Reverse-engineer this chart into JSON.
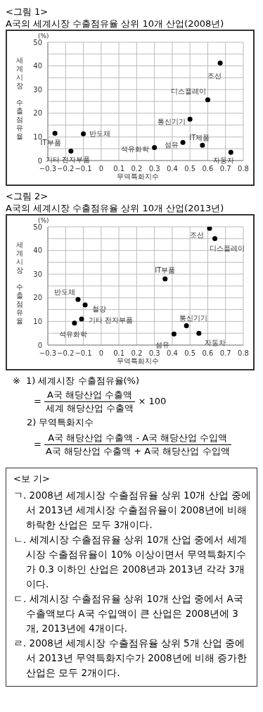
{
  "chart_data": [
    {
      "type": "scatter",
      "title": "<그림 1>",
      "subtitle": "A국의 세계시장 수출점유율 상위 10개 산업(2008년)",
      "xlabel": "무역특화지수",
      "ylabel": "세계시장 수출점유율",
      "marker": "circle",
      "grid": true,
      "x": [
        -0.26,
        -0.17,
        -0.1,
        0.3,
        0.46,
        0.5,
        0.57,
        0.6,
        0.67,
        0.73
      ],
      "series": [
        {
          "color": "#000000",
          "values": [
            11.5,
            4,
            11.3,
            5.5,
            7.7,
            17.5,
            6.5,
            25.7,
            41.2,
            3.5
          ]
        }
      ],
      "xlim": [
        -0.3,
        0.8
      ],
      "xticks": [
        {
          "value": -0.3,
          "label": "−0.3"
        },
        {
          "value": -0.2,
          "label": "−0.2"
        },
        {
          "value": -0.1,
          "label": "−0.1"
        },
        0,
        0.1,
        0.2,
        0.3,
        0.4,
        0.5,
        0.6,
        0.7,
        0.8
      ],
      "ylim": [
        0,
        50
      ],
      "yticks": [
        0,
        {
          "value": 5,
          "label": null
        },
        10,
        {
          "value": 15,
          "label": null
        },
        20,
        {
          "value": 25,
          "label": null
        },
        30,
        {
          "value": 35,
          "label": null
        },
        40,
        {
          "value": 45,
          "label": null
        },
        50
      ],
      "annotations": [
        "(%)",
        {
          "text": "IT부품",
          "x": -0.26,
          "y": 11.5
        },
        {
          "text": "기타 전자부품",
          "x": -0.17,
          "y": 4
        },
        {
          "text": "반도체",
          "x": -0.1,
          "y": 11.3
        },
        {
          "text": "석유화학",
          "x": 0.3,
          "y": 5.5
        },
        {
          "text": "섬유",
          "x": 0.46,
          "y": 7.7
        },
        {
          "text": "통신기기",
          "x": 0.5,
          "y": 17.5
        },
        {
          "text": "IT제품",
          "x": 0.57,
          "y": 6.5
        },
        {
          "text": "디스플레이",
          "x": 0.6,
          "y": 25.7
        },
        {
          "text": "조선",
          "x": 0.67,
          "y": 41.2
        },
        {
          "text": "자동차",
          "x": 0.73,
          "y": 3.5
        }
      ]
    },
    {
      "type": "scatter",
      "title": "<그림 2>",
      "subtitle": "A국의 세계시장 수출점유율 상위 10개 산업(2013년)",
      "xlabel": "무역특화지수",
      "ylabel": "세계시장 수출점유율",
      "marker": "circle",
      "grid": true,
      "x": [
        0.61,
        0.64,
        0.36,
        -0.13,
        -0.09,
        -0.11,
        -0.15,
        0.48,
        0.41,
        0.55
      ],
      "series": [
        {
          "color": "#000000",
          "values": [
            49.3,
            45,
            28,
            19.3,
            17,
            11,
            9.3,
            8.2,
            4.7,
            5
          ]
        }
      ],
      "xlim": [
        -0.3,
        0.8
      ],
      "xticks": [
        {
          "value": -0.3,
          "label": "−0.3"
        },
        {
          "value": -0.2,
          "label": "−0.2"
        },
        {
          "value": -0.1,
          "label": "−0.1"
        },
        0,
        0.1,
        0.2,
        0.3,
        0.4,
        0.5,
        0.6,
        0.7,
        0.8
      ],
      "ylim": [
        0,
        50
      ],
      "yticks": [
        0,
        {
          "value": 5,
          "label": null
        },
        10,
        {
          "value": 15,
          "label": null
        },
        20,
        {
          "value": 25,
          "label": null
        },
        30,
        {
          "value": 35,
          "label": null
        },
        40,
        {
          "value": 45,
          "label": null
        },
        50
      ],
      "annotations": [
        "(%)",
        {
          "text": "조선",
          "x": 0.61,
          "y": 49.3
        },
        {
          "text": "디스플레이",
          "x": 0.64,
          "y": 45
        },
        {
          "text": "IT부품",
          "x": 0.36,
          "y": 28
        },
        {
          "text": "반도체",
          "x": -0.13,
          "y": 19.3
        },
        {
          "text": "철강",
          "x": -0.09,
          "y": 17
        },
        {
          "text": "기타 전자부품",
          "x": -0.11,
          "y": 11
        },
        {
          "text": "석유화학",
          "x": -0.15,
          "y": 9.3
        },
        {
          "text": "통신기기",
          "x": 0.48,
          "y": 8.2
        },
        {
          "text": "섬유",
          "x": 0.41,
          "y": 4.7
        },
        {
          "text": "자동차",
          "x": 0.55,
          "y": 5
        }
      ]
    },
    {
      "type": "other",
      "annotations": [
        "※",
        "1) 세계시장 수출점유율(%)",
        "=",
        "A국 해당산업 수출액",
        "세계 해당산업 수출액",
        "× 100",
        "2) 무역특화지수",
        "=",
        "A국 해당산업 수출액 - A국 해당산업 수입액",
        "A국 해당산업 수출액 + A국 해당산업 수입액",
        "<보 기>",
        "ㄱ. 2008년 세계시장 수출점유율 상위 10개 산업 중에서 2013년 세계시장 수출점유율이 2008년에 비해 하락한 산업은 모두 3개이다.",
        "ㄴ. 세계시장 수출점유율 상위 10개 산업 중에서 세계시장 수출점유율이 10% 이상이면서 무역특화지수가 0.3 이하인 산업은 2008년과 2013년 각각 3개이다.",
        "ㄷ. 세계시장 수출점유율 상위 10개 산업 중에서 A국 수출액보다 A국 수입액이 큰 산업은 2008년에 3개, 2013년에 4개이다.",
        "ㄹ. 2008년 세계시장 수출점유율 상위 5개 산업 중에서 2013년 무역특화지수가 2008년에 비해 증가한 산업은 모두 2개이다."
      ]
    }
  ]
}
